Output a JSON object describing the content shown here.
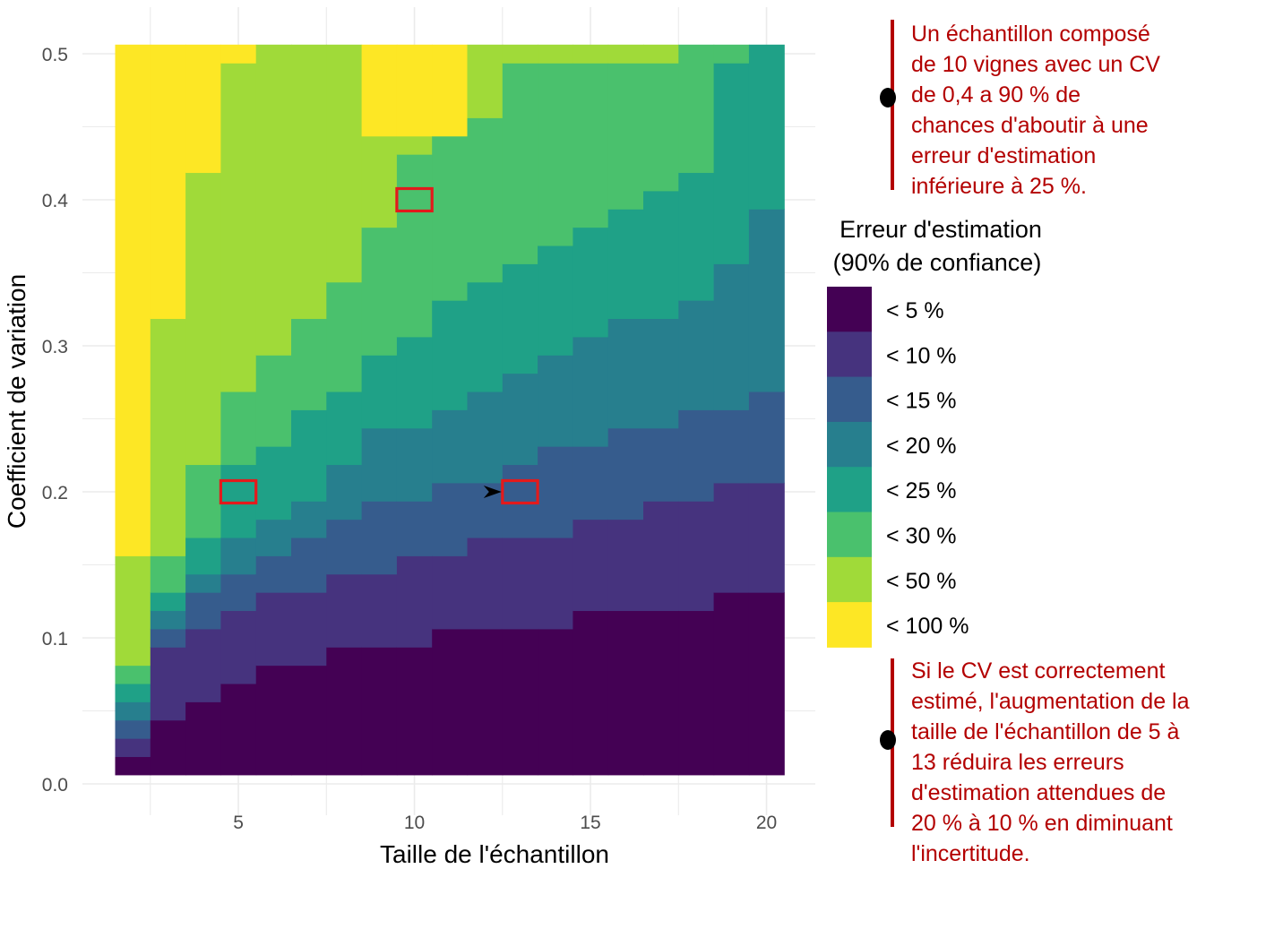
{
  "chart_data": {
    "type": "heatmap",
    "title": "",
    "xlabel": "Taille de l'échantillon",
    "ylabel": "Coefficient de variation",
    "x_ticks": [
      "5",
      "10",
      "15",
      "20"
    ],
    "y_ticks": [
      "0.0",
      "0.1",
      "0.2",
      "0.3",
      "0.4",
      "0.5"
    ],
    "x_range": [
      2,
      20
    ],
    "y_range": [
      0.0125,
      0.5
    ],
    "y_step": 0.0125,
    "grid": true,
    "legend": {
      "title_line1": "Erreur d'estimation",
      "title_line2": "(90% de confiance)",
      "position": "right",
      "classes": [
        {
          "label": "< 5 %",
          "color": "#440154"
        },
        {
          "label": "< 10 %",
          "color": "#46337E"
        },
        {
          "label": "< 15 %",
          "color": "#365C8D"
        },
        {
          "label": "< 20 %",
          "color": "#277F8E"
        },
        {
          "label": "< 25 %",
          "color": "#1FA187"
        },
        {
          "label": "< 30 %",
          "color": "#4AC16D"
        },
        {
          "label": "< 50 %",
          "color": "#A0DA39"
        },
        {
          "label": "< 100 %",
          "color": "#FDE725"
        }
      ]
    },
    "class_upper_cv_by_sample_size": [
      {
        "n": 2,
        "upper_cv": [
          0.0125,
          0.025,
          0.0375,
          0.05,
          0.0625,
          0.075,
          0.15,
          0.5
        ]
      },
      {
        "n": 3,
        "upper_cv": [
          0.0375,
          0.0875,
          0.1,
          0.1125,
          0.125,
          0.15,
          0.3125,
          0.5
        ]
      },
      {
        "n": 4,
        "upper_cv": [
          0.05,
          0.1,
          0.125,
          0.1375,
          0.1625,
          0.2125,
          0.4125,
          0.5
        ]
      },
      {
        "n": 5,
        "upper_cv": [
          0.0625,
          0.1125,
          0.1375,
          0.1625,
          0.2125,
          0.2625,
          0.4875,
          0.5
        ]
      },
      {
        "n": 6,
        "upper_cv": [
          0.075,
          0.125,
          0.15,
          0.175,
          0.225,
          0.2875,
          0.5,
          0.5
        ]
      },
      {
        "n": 7,
        "upper_cv": [
          0.075,
          0.125,
          0.1625,
          0.1875,
          0.25,
          0.3125,
          0.5,
          0.5
        ]
      },
      {
        "n": 8,
        "upper_cv": [
          0.0875,
          0.1375,
          0.175,
          0.2125,
          0.2625,
          0.3375,
          0.5,
          0.5
        ]
      },
      {
        "n": 9,
        "upper_cv": [
          0.0875,
          0.1375,
          0.1875,
          0.2375,
          0.2875,
          0.375,
          0.4375,
          0.5
        ]
      },
      {
        "n": 10,
        "upper_cv": [
          0.0875,
          0.15,
          0.1875,
          0.2375,
          0.3,
          0.425,
          0.4375,
          0.5
        ]
      },
      {
        "n": 11,
        "upper_cv": [
          0.1,
          0.15,
          0.2,
          0.25,
          0.325,
          0.4375,
          0.4375,
          0.5
        ]
      },
      {
        "n": 12,
        "upper_cv": [
          0.1,
          0.1625,
          0.2,
          0.2625,
          0.3375,
          0.45,
          0.5,
          0.5
        ]
      },
      {
        "n": 13,
        "upper_cv": [
          0.1,
          0.1625,
          0.2125,
          0.275,
          0.35,
          0.4875,
          0.5,
          0.5
        ]
      },
      {
        "n": 14,
        "upper_cv": [
          0.1,
          0.1625,
          0.225,
          0.2875,
          0.3625,
          0.4875,
          0.5,
          0.5
        ]
      },
      {
        "n": 15,
        "upper_cv": [
          0.1125,
          0.175,
          0.225,
          0.3,
          0.375,
          0.4875,
          0.5,
          0.5
        ]
      },
      {
        "n": 16,
        "upper_cv": [
          0.1125,
          0.175,
          0.2375,
          0.3125,
          0.3875,
          0.4875,
          0.5,
          0.5
        ]
      },
      {
        "n": 17,
        "upper_cv": [
          0.1125,
          0.1875,
          0.2375,
          0.3125,
          0.4,
          0.4875,
          0.5,
          0.5
        ]
      },
      {
        "n": 18,
        "upper_cv": [
          0.1125,
          0.1875,
          0.25,
          0.325,
          0.4125,
          0.5,
          0.5,
          0.5
        ]
      },
      {
        "n": 19,
        "upper_cv": [
          0.125,
          0.2,
          0.25,
          0.35,
          0.4875,
          0.5,
          0.5,
          0.5
        ]
      },
      {
        "n": 20,
        "upper_cv": [
          0.125,
          0.2,
          0.2625,
          0.3875,
          0.5,
          0.5,
          0.5,
          0.5
        ]
      }
    ],
    "highlight_cells": [
      {
        "n": 10,
        "cv": 0.4
      },
      {
        "n": 5,
        "cv": 0.2
      },
      {
        "n": 13,
        "cv": 0.2
      }
    ],
    "arrow_target": {
      "n": 13,
      "cv": 0.2
    },
    "highlight_color": "#e31a1c"
  },
  "annotations": {
    "top_lines": [
      "Un échantillon composé",
      "de 10 vignes avec un CV",
      "de 0,4 a 90 % de",
      "chances d'aboutir à une",
      "erreur d'estimation",
      "inférieure à 25 %."
    ],
    "bottom_lines": [
      "Si le CV est correctement",
      "estimé, l'augmentation de la",
      "taille de l'échantillon de 5 à",
      "13 réduira les erreurs",
      "d'estimation attendues de",
      "20 % à 10 % en diminuant",
      "l'incertitude."
    ]
  }
}
